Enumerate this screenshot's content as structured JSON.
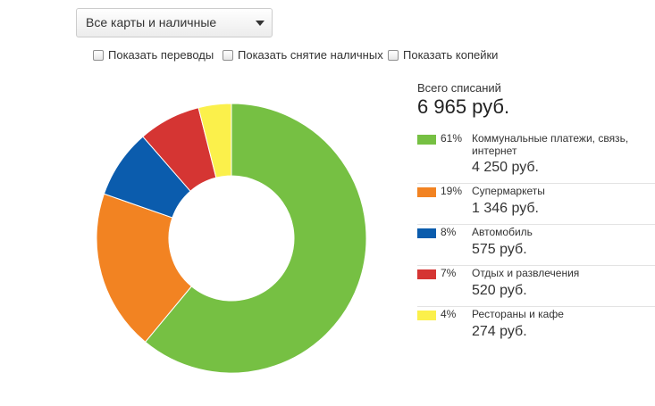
{
  "filter": {
    "selected": "Все карты и наличные"
  },
  "checkboxes": {
    "transfers": {
      "label": "Показать переводы",
      "checked": false
    },
    "cash": {
      "label": "Показать снятие наличных",
      "checked": false
    },
    "kopecks": {
      "label": "Показать копейки",
      "checked": false
    }
  },
  "summary": {
    "total_label": "Всего списаний",
    "total_value": "6 965 руб."
  },
  "chart_data": {
    "type": "pie",
    "donut": true,
    "unit": "руб.",
    "categories": [
      "Коммунальные платежи, связь, интернет",
      "Супермаркеты",
      "Автомобиль",
      "Отдых и развлечения",
      "Рестораны и кафе"
    ],
    "values": [
      4250,
      1346,
      575,
      520,
      274
    ],
    "percents": [
      61,
      19,
      8,
      7,
      4
    ],
    "colors": [
      "#76c043",
      "#f28322",
      "#0b5cad",
      "#d53533",
      "#fbf04b"
    ]
  },
  "legend_items": [
    {
      "percent": "61%",
      "label": "Коммунальные платежи, связь, интернет",
      "amount": "4 250 руб.",
      "color": "#76c043"
    },
    {
      "percent": "19%",
      "label": "Супермаркеты",
      "amount": "1 346 руб.",
      "color": "#f28322"
    },
    {
      "percent": "8%",
      "label": "Автомобиль",
      "amount": "575 руб.",
      "color": "#0b5cad"
    },
    {
      "percent": "7%",
      "label": "Отдых и развлечения",
      "amount": "520 руб.",
      "color": "#d53533"
    },
    {
      "percent": "4%",
      "label": "Рестораны и кафе",
      "amount": "274 руб.",
      "color": "#fbf04b"
    }
  ]
}
